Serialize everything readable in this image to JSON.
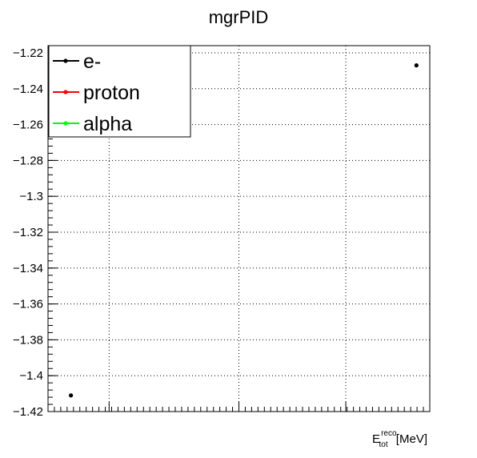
{
  "chart_data": {
    "type": "scatter",
    "title": "mgrPID",
    "xlabel": {
      "base": "E",
      "superscript": "reco",
      "subscript": "tot",
      "unit": " [MeV]"
    },
    "ylabel": "",
    "ylim": [
      -1.42,
      -1.216
    ],
    "yticks": [
      -1.22,
      -1.24,
      -1.26,
      -1.28,
      -1.3,
      -1.32,
      -1.34,
      -1.36,
      -1.38,
      -1.4,
      -1.42
    ],
    "yticklabels": [
      "−1.22",
      "−1.24",
      "−1.26",
      "−1.28",
      "−1.3",
      "−1.32",
      "−1.34",
      "−1.36",
      "−1.38",
      "−1.4",
      "−1.42"
    ],
    "xlim": [
      0,
      1
    ],
    "xgrid_fractions": [
      0.16,
      0.5,
      0.78
    ],
    "grid": true,
    "legend_position": "top-left",
    "series": [
      {
        "name": "e-",
        "color": "#000000",
        "points": [
          {
            "x": 0.06,
            "y": -1.411
          },
          {
            "x": 0.965,
            "y": -1.227
          }
        ]
      },
      {
        "name": "proton",
        "color": "#ff0000",
        "points": []
      },
      {
        "name": "alpha",
        "color": "#00ff00",
        "points": []
      }
    ]
  }
}
